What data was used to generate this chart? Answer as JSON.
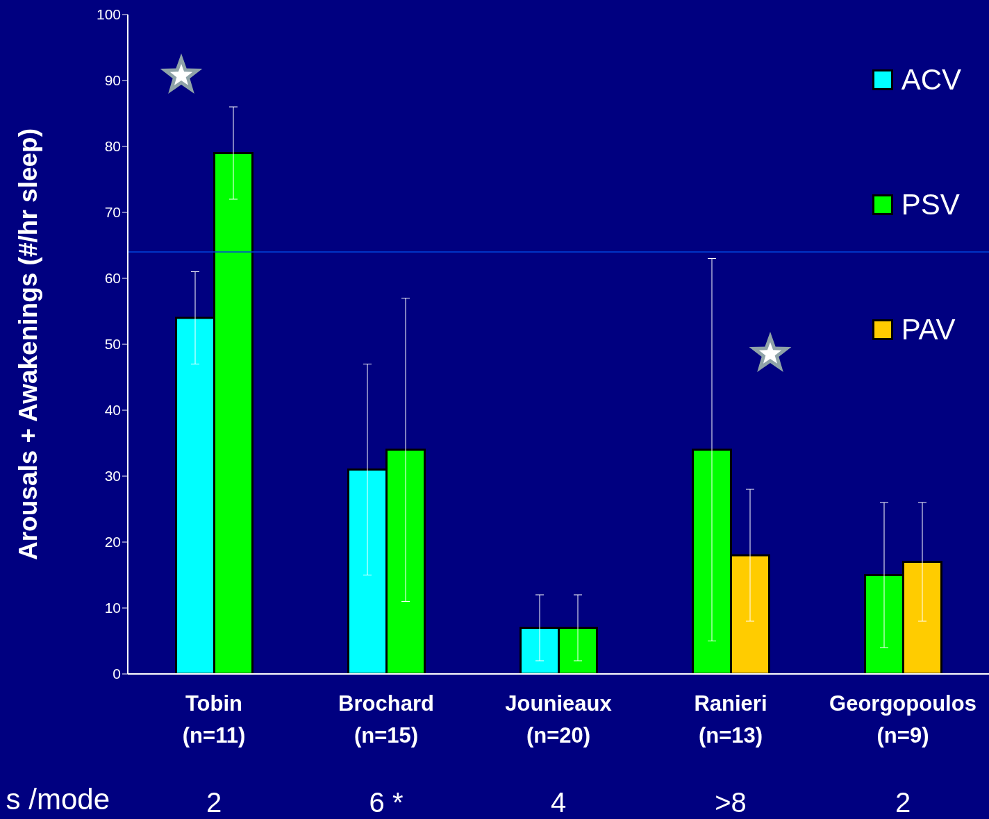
{
  "chart_data": {
    "type": "bar",
    "ylabel": "Arousals + Awakenings (#/hr sleep)",
    "categories": [
      "Tobin\n(n=11)",
      "Brochard\n(n=15)",
      "Jounieaux\n(n=20)",
      "Ranieri\n(n=13)",
      "Georgopoulos\n(n=9)"
    ],
    "series": [
      {
        "name": "ACV",
        "color": "#00ffff",
        "values": [
          54,
          31,
          7,
          null,
          null
        ],
        "errors": [
          7,
          16,
          5,
          null,
          null
        ]
      },
      {
        "name": "PSV",
        "color": "#00ff00",
        "values": [
          79,
          34,
          7,
          34,
          15
        ],
        "errors": [
          7,
          23,
          5,
          29,
          11
        ]
      },
      {
        "name": "PAV",
        "color": "#ffcc00",
        "values": [
          null,
          null,
          null,
          18,
          17
        ],
        "errors": [
          null,
          null,
          null,
          10,
          9
        ]
      }
    ],
    "ylim": [
      0,
      100
    ],
    "yticks": [
      0,
      10,
      20,
      30,
      40,
      50,
      60,
      70,
      80,
      90,
      100
    ],
    "grid": false,
    "legend": "right",
    "ref_lines": [
      {
        "axis": "y",
        "value": 64,
        "color": "#0044dd"
      }
    ],
    "annotations": [
      "s /mode",
      "2",
      "6 *",
      "4",
      ">8",
      "2"
    ]
  }
}
